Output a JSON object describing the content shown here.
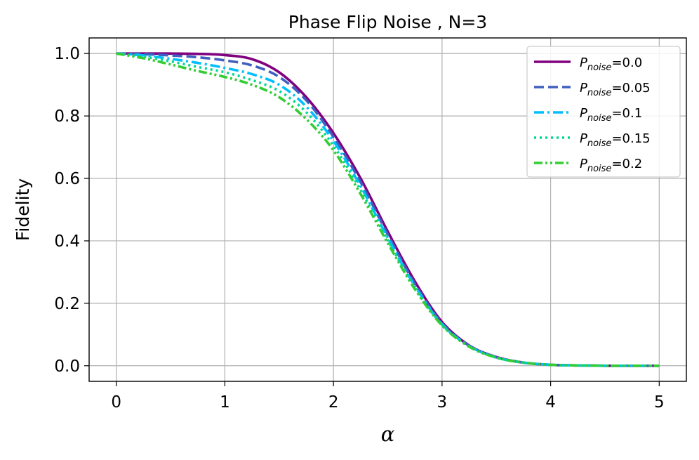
{
  "chart_data": {
    "type": "line",
    "title": "Phase Flip Noise , N=3",
    "xlabel": "α",
    "ylabel": "Fidelity",
    "xlim": [
      -0.25,
      5.25
    ],
    "ylim": [
      -0.05,
      1.05
    ],
    "xticks": [
      "0",
      "1",
      "2",
      "3",
      "4",
      "5"
    ],
    "yticks": [
      "0.0",
      "0.2",
      "0.4",
      "0.6",
      "0.8",
      "1.0"
    ],
    "grid": true,
    "legend_position": "top-right",
    "x": [
      0,
      0.25,
      0.5,
      0.75,
      1.0,
      1.25,
      1.5,
      1.75,
      2.0,
      2.25,
      2.5,
      2.75,
      3.0,
      3.25,
      3.5,
      3.75,
      4.0,
      4.25,
      4.5,
      4.75,
      5.0
    ],
    "series": [
      {
        "name_prefix": "P",
        "name_sub": "noise",
        "name_value": "=0.0",
        "color": "#800080",
        "dash": "solid",
        "values": [
          1.0,
          1.0,
          1.0,
          0.999,
          0.995,
          0.982,
          0.94,
          0.86,
          0.745,
          0.6,
          0.43,
          0.27,
          0.14,
          0.065,
          0.028,
          0.01,
          0.003,
          0.001,
          0.0,
          0.0,
          0.0
        ]
      },
      {
        "name_prefix": "P",
        "name_sub": "noise",
        "name_value": "=0.05",
        "color": "#4060c0",
        "dash": "dashed",
        "values": [
          1.0,
          0.998,
          0.994,
          0.988,
          0.978,
          0.962,
          0.925,
          0.85,
          0.733,
          0.588,
          0.42,
          0.262,
          0.136,
          0.064,
          0.027,
          0.01,
          0.003,
          0.001,
          0.0,
          0.0,
          0.0
        ]
      },
      {
        "name_prefix": "P",
        "name_sub": "noise",
        "name_value": "=0.1",
        "color": "#00bfff",
        "dash": "dashdot",
        "values": [
          1.0,
          0.994,
          0.983,
          0.97,
          0.954,
          0.934,
          0.9,
          0.83,
          0.72,
          0.575,
          0.41,
          0.255,
          0.133,
          0.063,
          0.027,
          0.01,
          0.003,
          0.001,
          0.0,
          0.0,
          0.0
        ]
      },
      {
        "name_prefix": "P",
        "name_sub": "noise",
        "name_value": "=0.15",
        "color": "#00d890",
        "dash": "dotted",
        "values": [
          1.0,
          0.99,
          0.975,
          0.957,
          0.94,
          0.915,
          0.88,
          0.812,
          0.705,
          0.563,
          0.402,
          0.25,
          0.131,
          0.062,
          0.026,
          0.01,
          0.003,
          0.001,
          0.0,
          0.0,
          0.0
        ]
      },
      {
        "name_prefix": "P",
        "name_sub": "noise",
        "name_value": "=0.2",
        "color": "#32cd32",
        "dash": "dashdotdot",
        "values": [
          1.0,
          0.985,
          0.965,
          0.944,
          0.925,
          0.9,
          0.86,
          0.79,
          0.69,
          0.55,
          0.393,
          0.245,
          0.129,
          0.061,
          0.026,
          0.01,
          0.003,
          0.001,
          0.0,
          0.0,
          0.0
        ]
      }
    ]
  }
}
